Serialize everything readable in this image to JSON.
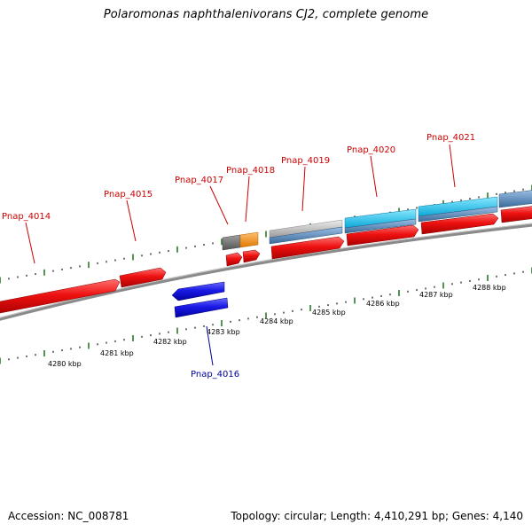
{
  "title": "Polaromonas naphthalenivorans CJ2, complete genome",
  "footer": {
    "accession": "Accession: NC_008781",
    "summary": "Topology: circular; Length: 4,410,291 bp; Genes: 4,140"
  },
  "axis_labels": [
    "4280 kbp",
    "4281 kbp",
    "4282 kbp",
    "4283 kbp",
    "4284 kbp",
    "4285 kbp",
    "4286 kbp",
    "4287 kbp",
    "4288 kbp"
  ],
  "genes": [
    {
      "name": "Pnap_4014",
      "strand": "forward"
    },
    {
      "name": "Pnap_4015",
      "strand": "forward"
    },
    {
      "name": "Pnap_4016",
      "strand": "reverse"
    },
    {
      "name": "Pnap_4017",
      "strand": "forward"
    },
    {
      "name": "Pnap_4018",
      "strand": "forward"
    },
    {
      "name": "Pnap_4019",
      "strand": "forward"
    },
    {
      "name": "Pnap_4020",
      "strand": "forward"
    },
    {
      "name": "Pnap_4021",
      "strand": "forward"
    }
  ],
  "colors": {
    "cds_forward": "#ee1111",
    "cds_reverse": "#1a1ae6",
    "feature_gray": "#777777",
    "feature_orange": "#ff9922",
    "feature_silver": "#c4c4c4",
    "feature_steel": "#5f8fc0",
    "feature_cyan": "#22ccf5",
    "backbone": "#8a8a8a",
    "tick_major": "#2a7a2a",
    "tick_minor": "#222222",
    "label_forward": "#cc0000",
    "label_reverse": "#000099"
  }
}
